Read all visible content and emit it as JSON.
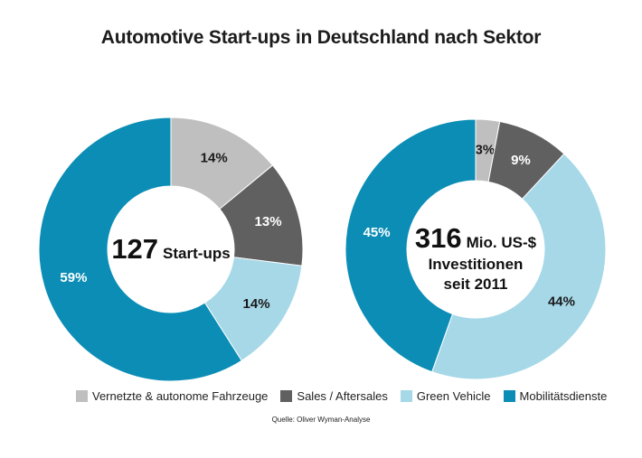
{
  "chart_data": [
    {
      "type": "pie",
      "title": "Automotive Start-ups in Deutschland nach Sektor",
      "categories": [
        "Vernetzte & autonome Fahrzeuge",
        "Sales / Aftersales",
        "Green Vehicle",
        "Mobilitätsdienste"
      ],
      "values": [
        14,
        13,
        14,
        59
      ],
      "labels": [
        "14%",
        "13%",
        "14%",
        "59%"
      ],
      "center": {
        "big": "127",
        "small": "Start-ups"
      }
    },
    {
      "type": "pie",
      "categories": [
        "Vernetzte & autonome Fahrzeuge",
        "Sales / Aftersales",
        "Green Vehicle",
        "Mobilitätsdienste"
      ],
      "values": [
        3,
        9,
        44,
        45
      ],
      "labels": [
        "3%",
        "9%",
        "44%",
        "45%"
      ],
      "center": {
        "big": "316",
        "small": "Mio. US-$",
        "line2": "Investitionen",
        "line3": "seit 2011"
      }
    }
  ],
  "title": "Automotive Start-ups in Deutschland nach Sektor",
  "legend": [
    {
      "label": "Vernetzte & autonome Fahrzeuge",
      "color": "#bfbfbf"
    },
    {
      "label": "Sales / Aftersales",
      "color": "#606060"
    },
    {
      "label": "Green Vehicle",
      "color": "#a6d8e8"
    },
    {
      "label": "Mobilitätsdienste",
      "color": "#0b8db5"
    }
  ],
  "label_colors": [
    "#1a1a1a",
    "#ffffff",
    "#1a1a1a",
    "#ffffff"
  ],
  "source": "Quelle: Oliver Wyman-Analyse"
}
